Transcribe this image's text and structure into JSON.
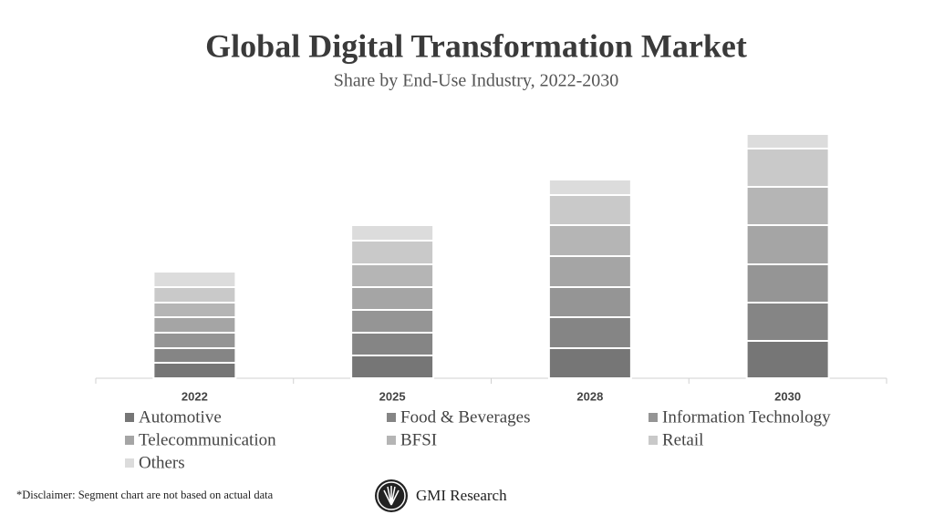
{
  "chart_data": {
    "type": "stacked_bar",
    "title": "Global Digital Transformation Market",
    "subtitle": "Share by End-Use Industry, 2022-2030",
    "categories": [
      "2022",
      "2025",
      "2028",
      "2030"
    ],
    "series": [
      {
        "name": "Automotive",
        "color": "#767676",
        "values": [
          17,
          25,
          33,
          41
        ]
      },
      {
        "name": "Food & Beverages",
        "color": "#858585",
        "values": [
          16,
          25,
          34,
          42
        ]
      },
      {
        "name": "Information Technology",
        "color": "#959595",
        "values": [
          17,
          25,
          33,
          42
        ]
      },
      {
        "name": "Telecommunication",
        "color": "#a5a5a5",
        "values": [
          17,
          25,
          34,
          43
        ]
      },
      {
        "name": "BFSI",
        "color": "#b5b5b5",
        "values": [
          16,
          25,
          34,
          42
        ]
      },
      {
        "name": "Retail",
        "color": "#c9c9c9",
        "values": [
          17,
          26,
          33,
          42
        ]
      },
      {
        "name": "Others",
        "color": "#dcdcdc",
        "values": [
          17,
          17,
          17,
          16
        ]
      }
    ],
    "footnote": "*Disclaimer:  Segment chart are not based on actual data",
    "brand": "GMI Research"
  }
}
